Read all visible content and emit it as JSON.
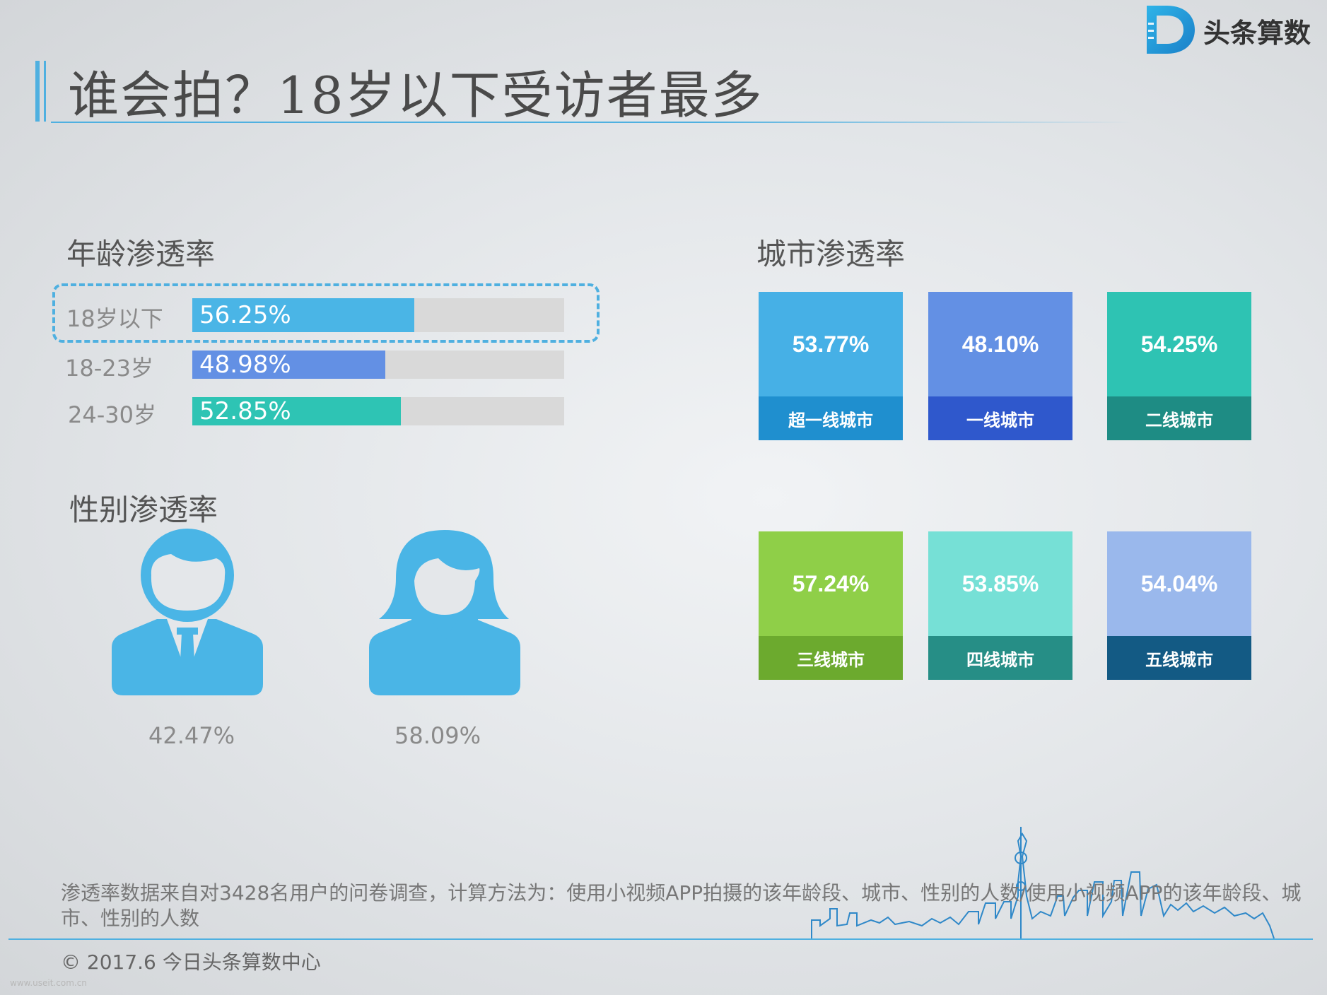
{
  "page_title": "谁会拍？18岁以下受访者最多",
  "brand": {
    "name": "头条算数",
    "colors": {
      "primary": "#1f9ad6",
      "accent": "#4fb0e0"
    }
  },
  "age_section": {
    "title": "年龄渗透率"
  },
  "gender_section": {
    "title": "性别渗透率"
  },
  "city_section": {
    "title": "城市渗透率"
  },
  "footnote": "渗透率数据来自对3428名用户的问卷调查，计算方法为：使用小视频APP拍摄的该年龄段、城市、性别的人数/使用小视频APP的该年龄段、城市、性别的人数",
  "copyright": "© 2017.6 今日头条算数中心",
  "watermark": "www.useit.com.cn",
  "chart_data": [
    {
      "type": "bar",
      "orientation": "horizontal",
      "title": "年龄渗透率",
      "categories": [
        "18岁以下",
        "18-23岁",
        "24-30岁"
      ],
      "values": [
        56.25,
        48.98,
        52.85
      ],
      "value_labels": [
        "56.25%",
        "48.98%",
        "52.85%"
      ],
      "colors": [
        "#4ab5e6",
        "#6390e4",
        "#2ec4b4"
      ],
      "highlighted": "18岁以下"
    },
    {
      "type": "table",
      "title": "性别渗透率",
      "categories": [
        "male",
        "female"
      ],
      "icons": [
        "male-user-icon",
        "female-user-icon"
      ],
      "values": [
        42.47,
        58.09
      ],
      "value_labels": [
        "42.47%",
        "58.09%"
      ],
      "colors": [
        "#4ab5e6",
        "#4ab5e6"
      ]
    },
    {
      "type": "table",
      "title": "城市渗透率",
      "categories": [
        "超一线城市",
        "一线城市",
        "二线城市",
        "三线城市",
        "四线城市",
        "五线城市"
      ],
      "values": [
        53.77,
        48.1,
        54.25,
        57.24,
        53.85,
        54.04
      ],
      "value_labels": [
        "53.77%",
        "48.10%",
        "54.25%",
        "57.24%",
        "53.85%",
        "54.04%"
      ],
      "colors": [
        {
          "top": "#46b0e6",
          "bottom": "#1f8fcf"
        },
        {
          "top": "#6390e4",
          "bottom": "#2f58cc"
        },
        {
          "top": "#2ec3b3",
          "bottom": "#1e8c84"
        },
        {
          "top": "#8fcf48",
          "bottom": "#6caa2e"
        },
        {
          "top": "#76e0d6",
          "bottom": "#268e86"
        },
        {
          "top": "#9ab8ec",
          "bottom": "#135a84"
        }
      ]
    }
  ]
}
